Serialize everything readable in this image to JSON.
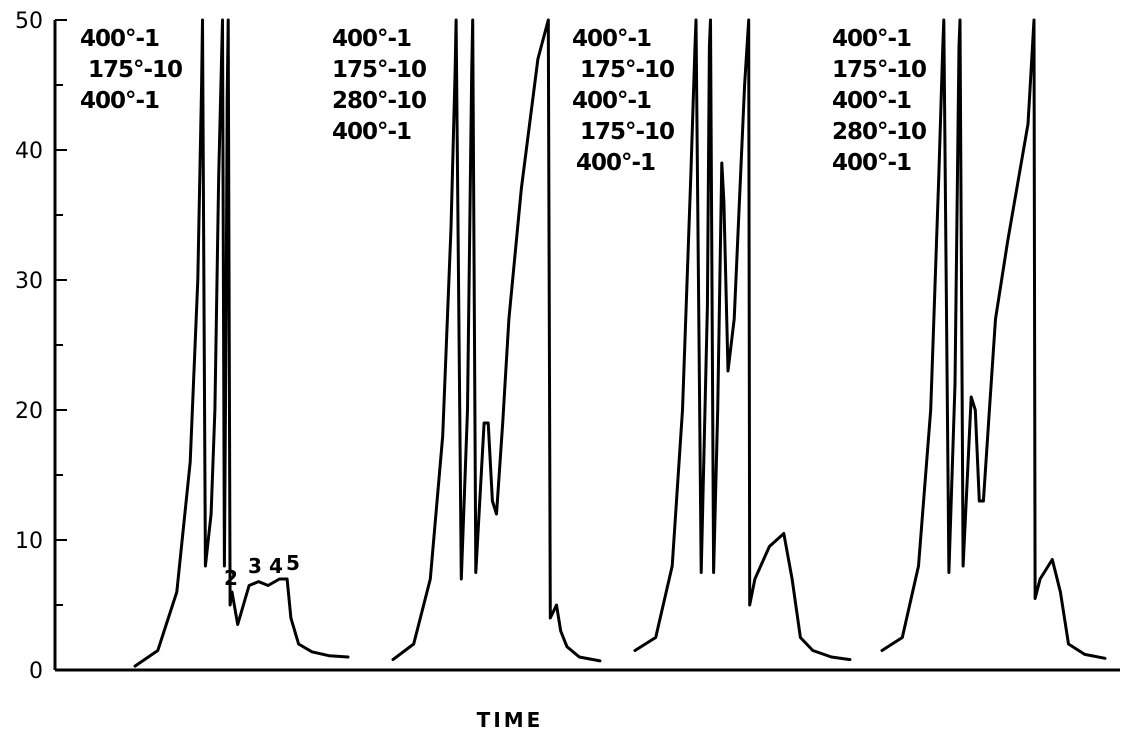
{
  "chart_data": {
    "type": "line",
    "title": "",
    "xlabel": "TIME",
    "ylabel": "",
    "ylim": [
      0,
      50
    ],
    "yticks": [
      "0",
      "10",
      "20",
      "30",
      "40",
      "50"
    ],
    "grid": false,
    "panels": [
      {
        "conditions": [
          "400°-1",
          "175°-10",
          "400°-1"
        ],
        "peak_labels": [
          "2",
          "3",
          "4",
          "5"
        ],
        "series": [
          {
            "x": [
              0,
              1.2,
              2.2,
              2.9,
              3.3,
              3.5,
              3.55,
              3.7,
              4.0,
              4.2,
              4.4,
              4.6,
              4.7,
              4.8,
              4.85,
              4.9,
              5.0,
              5.1,
              5.4,
              6.0,
              6.5,
              7.0,
              7.6,
              8.0,
              8.2,
              8.6,
              9.3,
              10.2,
              11.2
            ],
            "y": [
              0.3,
              1.5,
              6,
              16,
              30,
              45,
              50,
              8,
              12,
              20,
              38,
              50,
              8,
              30,
              44,
              50,
              5,
              6,
              3.5,
              6.5,
              6.8,
              6.5,
              7,
              7,
              4,
              2,
              1.4,
              1.1,
              1.0
            ]
          }
        ]
      },
      {
        "conditions": [
          "400°-1",
          "175°-10",
          "280°-10",
          "400°-1"
        ],
        "series": [
          {
            "x": [
              0,
              1.0,
              1.8,
              2.4,
              2.8,
              3.0,
              3.05,
              3.3,
              3.6,
              3.8,
              3.85,
              4.0,
              4.4,
              4.6,
              4.8,
              5.0,
              5.3,
              5.6,
              6.2,
              7.0,
              7.5,
              7.6,
              7.9,
              8.1,
              8.4,
              9.0,
              10.0
            ],
            "y": [
              0.8,
              2,
              7,
              18,
              34,
              46,
              50,
              7,
              20,
              46,
              50,
              7.5,
              19,
              19,
              13,
              12,
              19,
              27,
              37,
              47,
              50,
              4,
              5,
              3,
              1.8,
              1.0,
              0.7
            ]
          }
        ]
      },
      {
        "conditions": [
          "400°-1",
          "175°-10",
          "400°-1",
          "175°-10",
          "400°-1"
        ],
        "series": [
          {
            "x": [
              0,
              1.0,
              1.8,
              2.3,
              2.7,
              2.9,
              2.95,
              3.2,
              3.5,
              3.6,
              3.65,
              3.8,
              4.0,
              4.2,
              4.3,
              4.5,
              4.8,
              5.3,
              5.5,
              5.55,
              5.8,
              6.5,
              7.2,
              7.6,
              8.0,
              8.6,
              9.5,
              10.4
            ],
            "y": [
              1.5,
              2.5,
              8,
              20,
              38,
              48,
              50,
              7.5,
              28,
              48,
              50,
              7.5,
              20,
              39,
              36,
              23,
              27,
              45,
              50,
              5,
              7,
              9.5,
              10.5,
              7,
              2.5,
              1.5,
              1.0,
              0.8
            ]
          }
        ]
      },
      {
        "conditions": [
          "400°-1",
          "175°-10",
          "400°-1",
          "280°-10",
          "400°-1"
        ],
        "series": [
          {
            "x": [
              0,
              1.0,
              1.8,
              2.4,
              2.8,
              3.0,
              3.05,
              3.3,
              3.6,
              3.8,
              3.85,
              4.0,
              4.4,
              4.6,
              4.8,
              5.0,
              5.3,
              5.6,
              6.2,
              7.2,
              7.5,
              7.55,
              7.8,
              8.4,
              8.8,
              9.2,
              10.0,
              11.0
            ],
            "y": [
              1.5,
              2.5,
              8,
              20,
              38,
              48,
              50,
              7.5,
              22,
              48,
              50,
              8,
              21,
              20,
              13,
              13,
              20,
              27,
              33,
              42,
              50,
              5.5,
              7,
              8.5,
              6,
              2,
              1.2,
              0.9
            ]
          }
        ]
      }
    ]
  }
}
